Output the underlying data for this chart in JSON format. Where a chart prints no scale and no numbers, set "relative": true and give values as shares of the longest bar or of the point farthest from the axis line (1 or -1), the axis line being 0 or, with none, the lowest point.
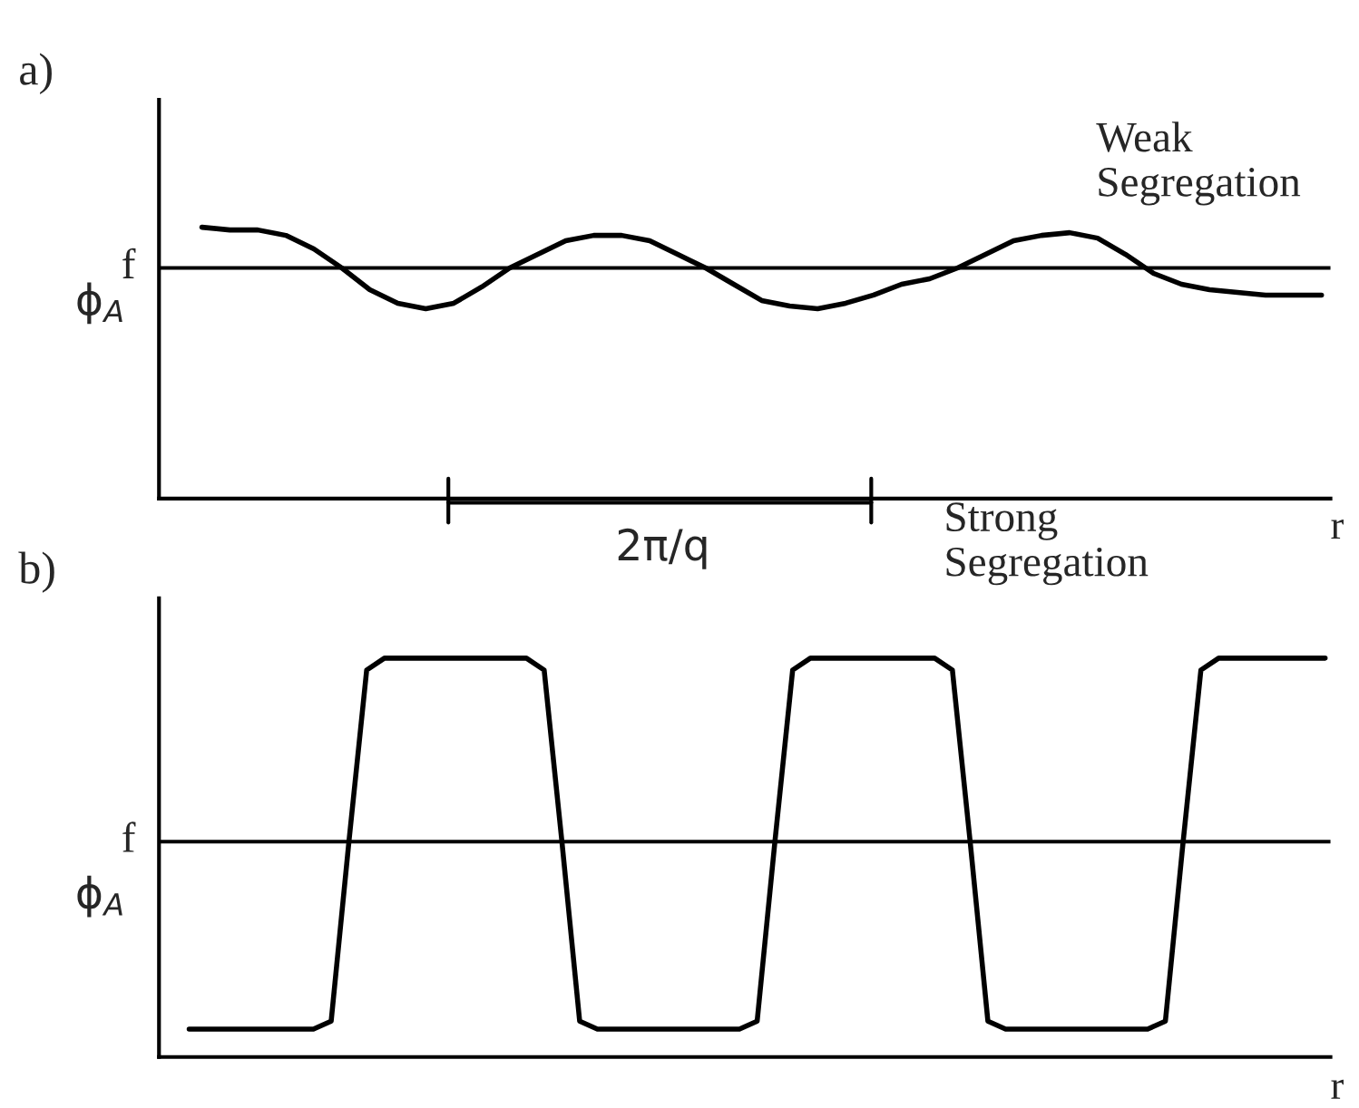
{
  "chart_data": [
    {
      "type": "line",
      "title": "a)",
      "ylabel": "ϕ$_{A}$",
      "xlabel": "r",
      "relative": true,
      "legend": false,
      "categories": [
        null,
        null,
        null,
        null,
        null,
        null,
        null,
        null,
        null,
        null,
        null,
        null,
        null,
        null,
        null,
        null,
        null,
        null,
        null,
        null,
        null,
        null,
        null,
        null,
        null,
        null,
        null,
        null,
        null,
        null,
        null,
        null,
        null,
        null,
        null,
        null,
        null,
        null,
        null,
        null,
        null
      ],
      "series": [
        {
          "color": "#000000",
          "values": [
            1.0,
            0.99,
            0.99,
            0.97,
            0.92,
            0.85,
            0.77,
            0.72,
            0.7,
            0.72,
            0.78,
            0.85,
            0.9,
            0.95,
            0.97,
            0.97,
            0.95,
            0.9,
            0.85,
            0.79,
            0.73,
            0.71,
            0.7,
            0.72,
            0.75,
            0.79,
            0.81,
            0.85,
            0.9,
            0.95,
            0.97,
            0.98,
            0.96,
            0.9,
            0.83,
            0.79,
            0.77,
            0.76,
            0.75,
            0.75,
            0.75
          ]
        }
      ],
      "ref_lines": [
        {
          "axis": "y",
          "value": 0.85,
          "label": "f",
          "color": "#000000"
        }
      ],
      "annotations": [
        "Weak\nSegregation",
        "2π/q"
      ]
    },
    {
      "type": "line",
      "title": "b)",
      "ylabel": "ϕ$_{A}$",
      "xlabel": "r",
      "relative": true,
      "legend": false,
      "categories": [
        null,
        null,
        null,
        null,
        null,
        null,
        null,
        null,
        null,
        null,
        null,
        null,
        null,
        null,
        null,
        null,
        null,
        null,
        null,
        null,
        null,
        null,
        null,
        null,
        null,
        null,
        null,
        null,
        null,
        null,
        null,
        null,
        null,
        null,
        null,
        null,
        null,
        null,
        null,
        null,
        null,
        null,
        null,
        null,
        null,
        null,
        null,
        null,
        null,
        null,
        null,
        null,
        null,
        null,
        null,
        null,
        null,
        null,
        null,
        null,
        null,
        null,
        null,
        null,
        null
      ],
      "series": [
        {
          "color": "#000000",
          "values": [
            0.07,
            0.07,
            0.07,
            0.07,
            0.07,
            0.07,
            0.07,
            0.07,
            0.09,
            0.54,
            0.97,
            1.0,
            1.0,
            1.0,
            1.0,
            1.0,
            1.0,
            1.0,
            1.0,
            1.0,
            0.97,
            0.54,
            0.09,
            0.07,
            0.07,
            0.07,
            0.07,
            0.07,
            0.07,
            0.07,
            0.07,
            0.07,
            0.09,
            0.54,
            0.97,
            1.0,
            1.0,
            1.0,
            1.0,
            1.0,
            1.0,
            1.0,
            1.0,
            0.97,
            0.54,
            0.09,
            0.07,
            0.07,
            0.07,
            0.07,
            0.07,
            0.07,
            0.07,
            0.07,
            0.07,
            0.09,
            0.54,
            0.97,
            1.0,
            1.0,
            1.0,
            1.0,
            1.0,
            1.0,
            1.0
          ]
        }
      ],
      "ref_lines": [
        {
          "axis": "y",
          "value": 0.54,
          "label": "f",
          "color": "#000000"
        }
      ],
      "annotations": [
        "Strong\nSegregation"
      ]
    }
  ]
}
